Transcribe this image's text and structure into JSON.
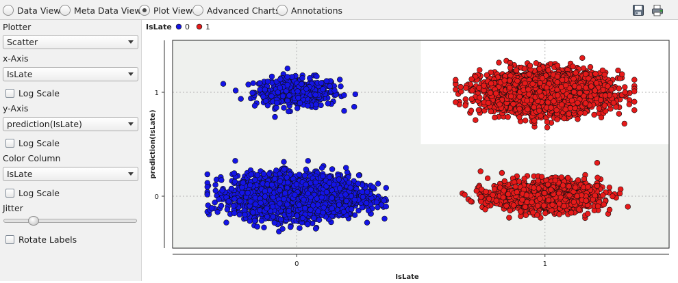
{
  "view_tabs": [
    {
      "label": "Data View",
      "selected": false
    },
    {
      "label": "Meta Data View",
      "selected": false
    },
    {
      "label": "Plot View",
      "selected": true
    },
    {
      "label": "Advanced Charts",
      "selected": false
    },
    {
      "label": "Annotations",
      "selected": false
    }
  ],
  "toolbar": {
    "icons": [
      "save-icon",
      "print-icon"
    ]
  },
  "sidebar": {
    "plotter_label": "Plotter",
    "plotter_value": "Scatter",
    "x_axis_label": "x-Axis",
    "x_axis_value": "IsLate",
    "x_log_label": "Log Scale",
    "y_axis_label": "y-Axis",
    "y_axis_value": "prediction(IsLate)",
    "y_log_label": "Log Scale",
    "color_label": "Color Column",
    "color_value": "IsLate",
    "color_log_label": "Log Scale",
    "jitter_label": "Jitter",
    "jitter_level": 0.2,
    "rotate_label": "Rotate Labels"
  },
  "colors": {
    "class_0": "#1414e6",
    "class_1": "#e61a1a",
    "quadrant_shade": "#eff1ee"
  },
  "chart_data": {
    "type": "scatter",
    "title": "",
    "legend_title": "IsLate",
    "legend": [
      {
        "name": "0",
        "color": "#1414e6"
      },
      {
        "name": "1",
        "color": "#e61a1a"
      }
    ],
    "xlabel": "IsLate",
    "ylabel": "prediction(IsLate)",
    "x_ticks": [
      "0",
      "1"
    ],
    "y_ticks": [
      "0",
      "1"
    ],
    "xlim": [
      -0.5,
      1.5
    ],
    "ylim": [
      -0.5,
      1.5
    ],
    "jittered": true,
    "grid": true,
    "clusters": [
      {
        "x": 0,
        "y": 1,
        "class": "0",
        "density": "sparse"
      },
      {
        "x": 0,
        "y": 0,
        "class": "0",
        "density": "dense"
      },
      {
        "x": 1,
        "y": 1,
        "class": "1",
        "density": "dense"
      },
      {
        "x": 1,
        "y": 0,
        "class": "1",
        "density": "medium"
      }
    ]
  }
}
